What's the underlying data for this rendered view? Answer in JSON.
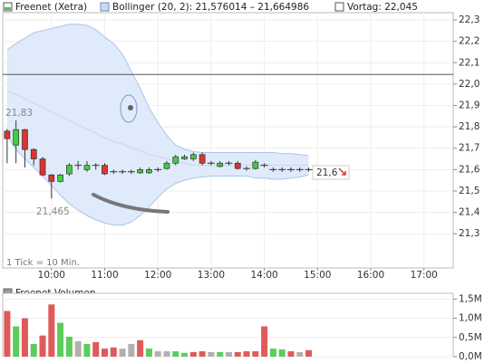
{
  "chart_data": [
    {
      "type": "candlestick",
      "legend": [
        "Freenet (Xetra)",
        "Bollinger (20, 2): 21,576014 – 21,664986",
        "Vortag: 22,045"
      ],
      "x": [
        550,
        560,
        570,
        580,
        590,
        600,
        610,
        620,
        630,
        640,
        650,
        660,
        670,
        680,
        690,
        700,
        710,
        720,
        730,
        740,
        750,
        760,
        770,
        780,
        790,
        800,
        810,
        820,
        830,
        840,
        850,
        860,
        870,
        880,
        890
      ],
      "open": [
        21.78,
        21.715,
        21.787,
        21.694,
        21.65,
        21.575,
        21.545,
        21.58,
        21.62,
        21.6,
        21.62,
        21.62,
        21.59,
        21.59,
        21.59,
        21.585,
        21.585,
        21.6,
        21.605,
        21.63,
        21.65,
        21.65,
        21.67,
        21.63,
        21.615,
        21.63,
        21.63,
        21.605,
        21.605,
        21.62,
        21.6,
        21.6,
        21.6,
        21.6,
        21.6
      ],
      "high": [
        21.79,
        21.83,
        21.79,
        21.7,
        21.66,
        21.58,
        21.58,
        21.63,
        21.64,
        21.64,
        21.63,
        21.63,
        21.6,
        21.6,
        21.6,
        21.61,
        21.61,
        21.61,
        21.64,
        21.67,
        21.67,
        21.68,
        21.68,
        21.64,
        21.64,
        21.64,
        21.64,
        21.615,
        21.645,
        21.63,
        21.61,
        21.61,
        21.61,
        21.61,
        21.61
      ],
      "low": [
        21.63,
        21.63,
        21.61,
        21.62,
        21.57,
        21.465,
        21.54,
        21.57,
        21.6,
        21.59,
        21.6,
        21.575,
        21.58,
        21.58,
        21.58,
        21.58,
        21.58,
        21.59,
        21.6,
        21.62,
        21.645,
        21.64,
        21.62,
        21.62,
        21.61,
        21.62,
        21.6,
        21.595,
        21.6,
        21.61,
        21.59,
        21.59,
        21.59,
        21.59,
        21.59
      ],
      "close": [
        21.745,
        21.787,
        21.694,
        21.65,
        21.575,
        21.545,
        21.575,
        21.62,
        21.62,
        21.62,
        21.62,
        21.58,
        21.59,
        21.59,
        21.59,
        21.6,
        21.6,
        21.6,
        21.63,
        21.66,
        21.66,
        21.67,
        21.63,
        21.63,
        21.63,
        21.63,
        21.605,
        21.605,
        21.635,
        21.62,
        21.6,
        21.6,
        21.6,
        21.6,
        21.6
      ],
      "colors": {
        "up": "#44cc44",
        "down": "#dd3333",
        "flat": "#333333"
      },
      "bollinger": {
        "color": "#a9c5ea",
        "fill": "#dfeafa",
        "upper": [
          22.16,
          22.19,
          22.215,
          22.24,
          22.25,
          22.26,
          22.27,
          22.28,
          22.28,
          22.275,
          22.255,
          22.22,
          22.19,
          22.14,
          22.06,
          21.98,
          21.89,
          21.82,
          21.76,
          21.715,
          21.695,
          21.685,
          21.68,
          21.68,
          21.68,
          21.68,
          21.68,
          21.68,
          21.68,
          21.68,
          21.68,
          21.675,
          21.675,
          21.67,
          21.665
        ],
        "middle": [
          21.97,
          21.95,
          21.93,
          21.91,
          21.89,
          21.87,
          21.85,
          21.83,
          21.81,
          21.79,
          21.77,
          21.75,
          21.73,
          21.72,
          21.7,
          21.69,
          21.67,
          21.66,
          21.65,
          21.64,
          21.63,
          21.62,
          21.62,
          21.62,
          21.62,
          21.62,
          21.62,
          21.62,
          21.62,
          21.62,
          21.62,
          21.62,
          21.62,
          21.62,
          21.62
        ],
        "lower": [
          21.76,
          21.695,
          21.65,
          21.61,
          21.57,
          21.525,
          21.48,
          21.44,
          21.41,
          21.385,
          21.365,
          21.35,
          21.34,
          21.34,
          21.355,
          21.385,
          21.425,
          21.47,
          21.51,
          21.535,
          21.55,
          21.56,
          21.565,
          21.57,
          21.57,
          21.57,
          21.57,
          21.57,
          21.56,
          21.56,
          21.555,
          21.555,
          21.56,
          21.565,
          21.576
        ]
      },
      "reference_line": 22.045,
      "xlim": [
        545,
        1053
      ],
      "xticks": [
        {
          "value": 600,
          "label": "10:00"
        },
        {
          "value": 660,
          "label": "11:00"
        },
        {
          "value": 720,
          "label": "12:00"
        },
        {
          "value": 780,
          "label": "13:00"
        },
        {
          "value": 840,
          "label": "14:00"
        },
        {
          "value": 900,
          "label": "15:00"
        },
        {
          "value": 960,
          "label": "16:00"
        },
        {
          "value": 1020,
          "label": "17:00"
        }
      ],
      "ylim": [
        21.14,
        22.334
      ],
      "yticks": [
        {
          "value": 21.3,
          "label": "21,3"
        },
        {
          "value": 21.4,
          "label": "21,4"
        },
        {
          "value": 21.5,
          "label": "21,5"
        },
        {
          "value": 21.6,
          "label": "21,6"
        },
        {
          "value": 21.7,
          "label": "21,7"
        },
        {
          "value": 21.8,
          "label": "21,8"
        },
        {
          "value": 21.9,
          "label": "21,9"
        },
        {
          "value": 22.0,
          "label": "22,0"
        },
        {
          "value": 22.1,
          "label": "22,1"
        },
        {
          "value": 22.2,
          "label": "22,2"
        },
        {
          "value": 22.3,
          "label": "22,3"
        }
      ],
      "annotations": [
        "21,83",
        "21,465",
        "21,6"
      ],
      "note": "1 Tick = 10 Min."
    },
    {
      "type": "bar",
      "legend": [
        "Freenet Volumen"
      ],
      "x": [
        550,
        560,
        570,
        580,
        590,
        600,
        610,
        620,
        630,
        640,
        650,
        660,
        670,
        680,
        690,
        700,
        710,
        720,
        730,
        740,
        750,
        760,
        770,
        780,
        790,
        800,
        810,
        820,
        830,
        840,
        850,
        860,
        870,
        880,
        890
      ],
      "values": [
        1190000,
        790000,
        1000000,
        330000,
        550000,
        1360000,
        880000,
        520000,
        400000,
        330000,
        380000,
        210000,
        240000,
        210000,
        330000,
        430000,
        210000,
        140000,
        140000,
        140000,
        100000,
        120000,
        140000,
        120000,
        120000,
        120000,
        120000,
        140000,
        140000,
        790000,
        210000,
        190000,
        140000,
        120000,
        170000
      ],
      "colors": [
        "#e05a5a",
        "#5ccc5c",
        "#e05a5a",
        "#5ccc5c",
        "#e05a5a",
        "#e05a5a",
        "#5ccc5c",
        "#5ccc5c",
        "#b0b0b0",
        "#5ccc5c",
        "#e05a5a",
        "#e05a5a",
        "#e05a5a",
        "#b0b0b0",
        "#b0b0b0",
        "#e05a5a",
        "#5ccc5c",
        "#b0b0b0",
        "#b0b0b0",
        "#5ccc5c",
        "#5ccc5c",
        "#e05a5a",
        "#e05a5a",
        "#b0b0b0",
        "#5ccc5c",
        "#b0b0b0",
        "#e05a5a",
        "#e05a5a",
        "#e05a5a",
        "#e05a5a",
        "#5ccc5c",
        "#5ccc5c",
        "#e05a5a",
        "#b0b0b0",
        "#e05a5a"
      ],
      "xlim": [
        545,
        1053
      ],
      "ylim": [
        0,
        1650000
      ],
      "yticks": [
        {
          "value": 0,
          "label": "0,0M"
        },
        {
          "value": 500000,
          "label": "0,5M"
        },
        {
          "value": 1000000,
          "label": "1,0M"
        },
        {
          "value": 1500000,
          "label": "1,5M"
        }
      ]
    }
  ]
}
